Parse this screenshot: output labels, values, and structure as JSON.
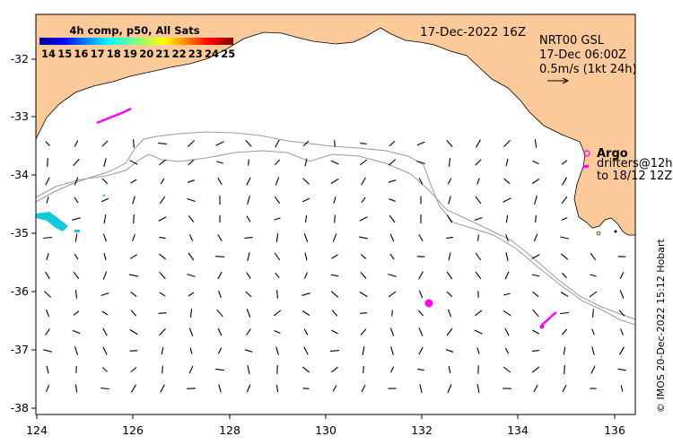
{
  "map": {
    "title_date": "17-Dec-2022 16Z",
    "colorbar": {
      "title": "4h comp, p50, All Sats",
      "labels": [
        "14",
        "15",
        "16",
        "17",
        "18",
        "19",
        "20",
        "21",
        "22",
        "23",
        "24",
        "25"
      ]
    },
    "current_info": {
      "line1": "NRT00 GSL",
      "line2": "17-Dec 06:00Z",
      "line3": "0.5m/s (1kt 24h)"
    },
    "legend": {
      "argo": "Argo",
      "drifters_line1": "drifters@12h",
      "drifters_line2": "to 18/12 12Z"
    },
    "credit": "© IMOS 20-Dec-2022 15:12 Hobart",
    "x_ticks": [
      "124",
      "126",
      "128",
      "130",
      "132",
      "134",
      "136"
    ],
    "y_ticks": [
      "-32",
      "-33",
      "-34",
      "-35",
      "-36",
      "-37",
      "-38"
    ],
    "colors": {
      "land": "#fcc99b",
      "argo": "#ff00ff",
      "sst_cyan": "#14c8dc",
      "bathymetry": "#9a9a9a"
    }
  }
}
